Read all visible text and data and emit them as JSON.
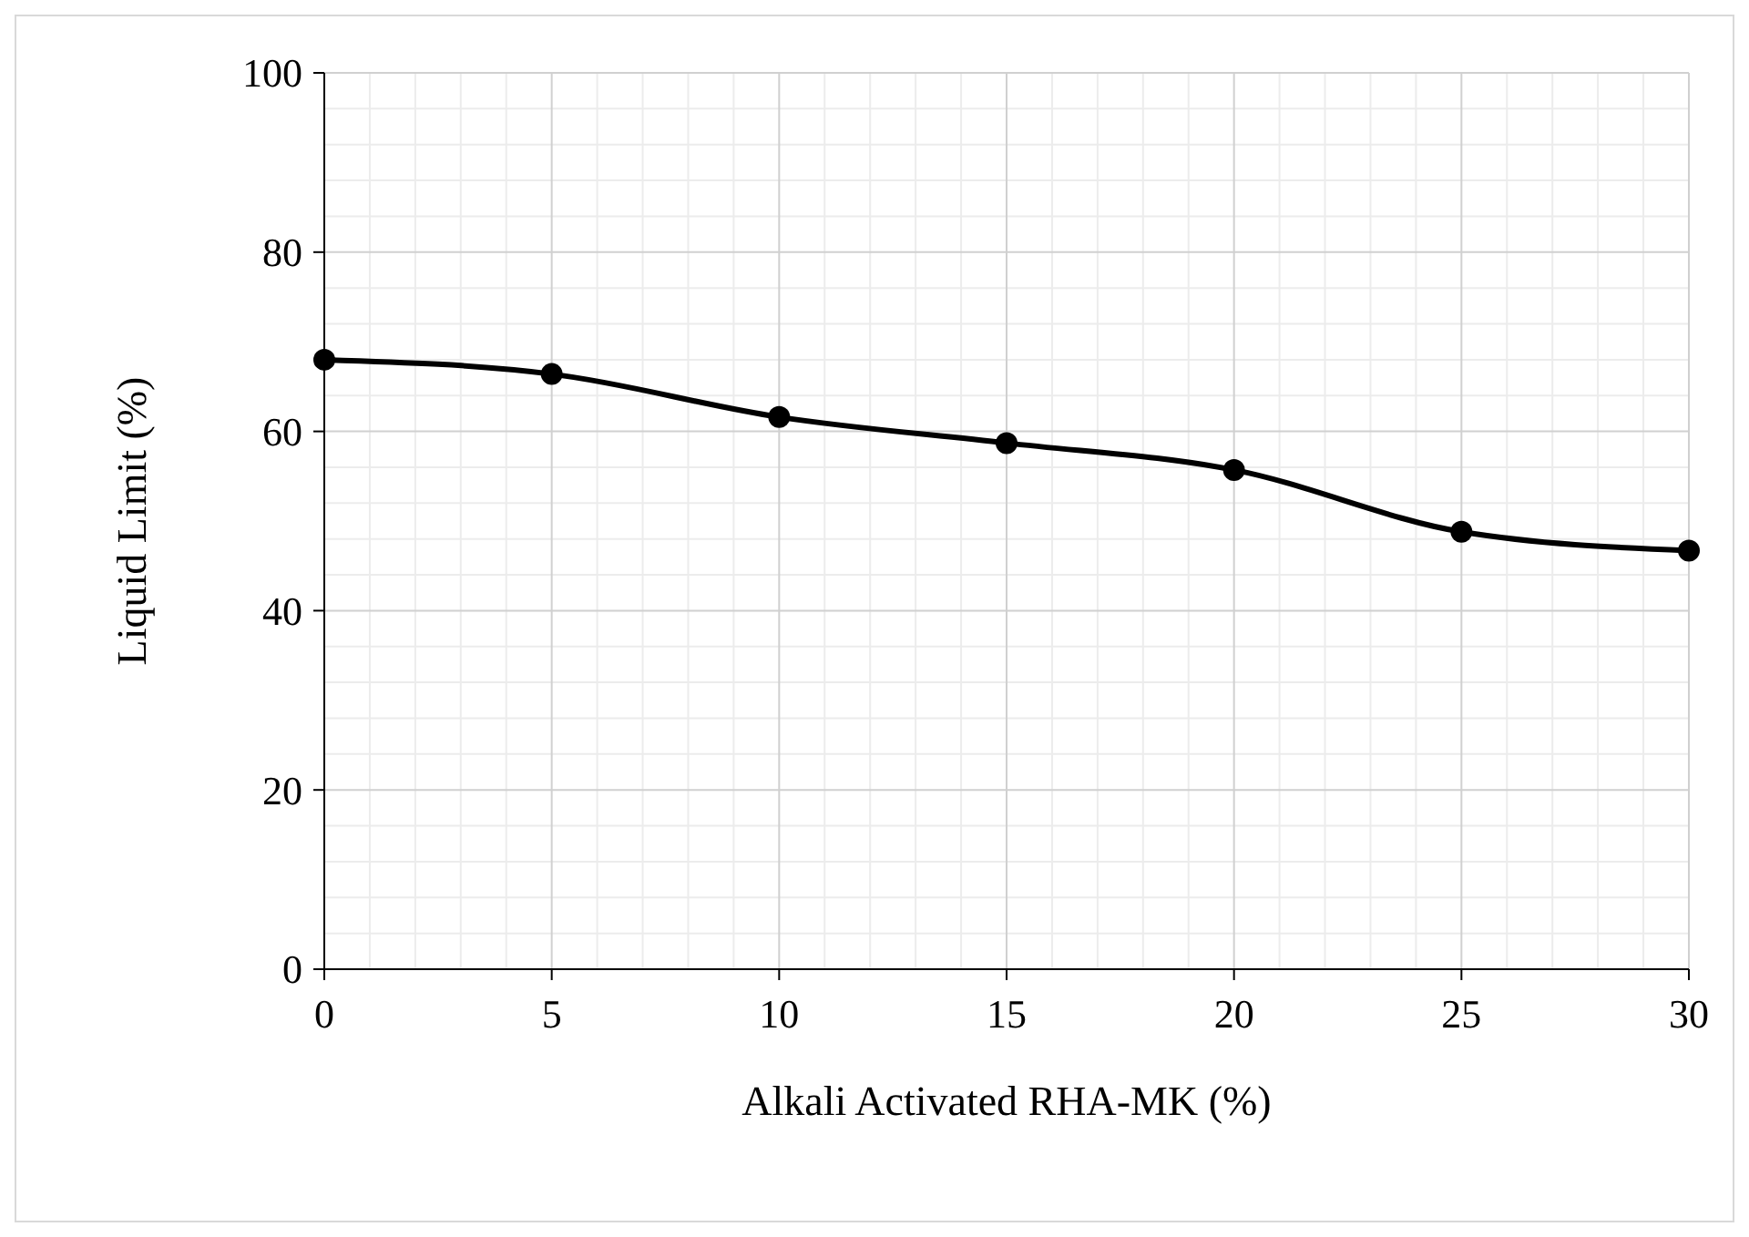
{
  "chart_data": {
    "type": "line",
    "xlabel": "Alkali Activated RHA-MK (%)",
    "ylabel": "Liquid Limit (%)",
    "x": [
      0,
      5,
      10,
      15,
      20,
      25,
      30
    ],
    "series": [
      {
        "color": "#000000",
        "values": [
          68,
          66.4,
          61.6,
          58.7,
          55.7,
          48.8,
          46.7
        ]
      }
    ],
    "xlim": [
      0,
      30
    ],
    "xticks": [
      0,
      5,
      10,
      15,
      20,
      25,
      30
    ],
    "ylim": [
      0,
      100
    ],
    "yticks": [
      0,
      20,
      40,
      60,
      80,
      100
    ],
    "grid": true,
    "marker": "circle",
    "line_style": "solid"
  }
}
